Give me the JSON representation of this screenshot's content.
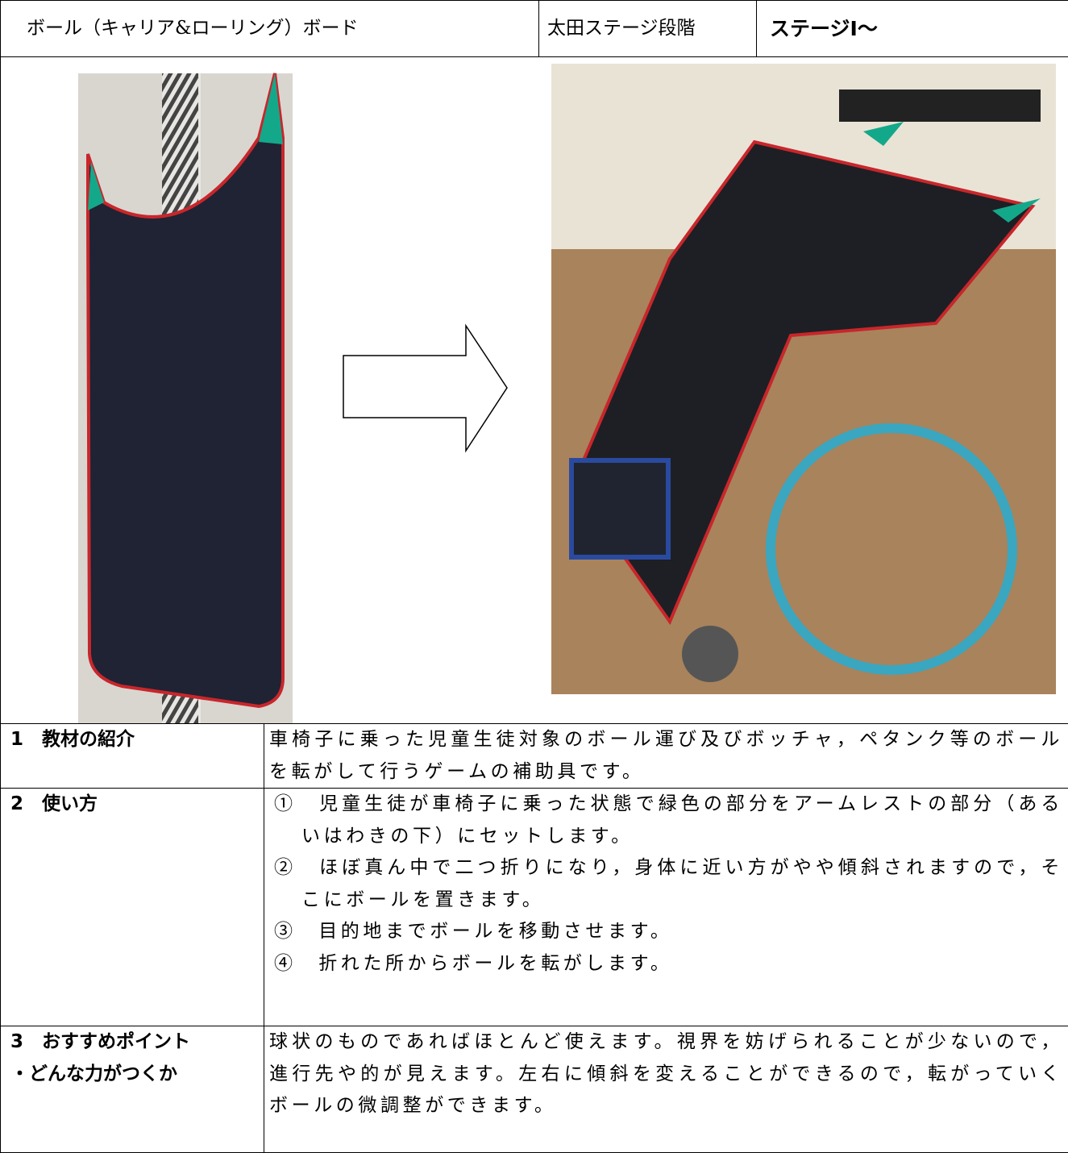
{
  "header": {
    "title": "ボール（キャリア&ローリング）ボード",
    "stage_label": "太田ステージ段階",
    "stage_value": "ステージⅠ～"
  },
  "sections": [
    {
      "heading": [
        "1　教材の紹介"
      ],
      "body": [
        "車椅子に乗った児童生徒対象のボール運び及びボッチャ，ペタンク等のボールを転がして行うゲームの補助具です。"
      ]
    },
    {
      "heading": [
        "2　使い方"
      ],
      "items": [
        "①　児童生徒が車椅子に乗った状態で緑色の部分をアームレストの部分（あるいはわきの下）にセットします。",
        "②　ほぼ真ん中で二つ折りになり，身体に近い方がやや傾斜されますので，そこにボールを置きます。",
        "③　目的地までボールを移動させます。",
        "④　折れた所からボールを転がします。"
      ]
    },
    {
      "heading": [
        "3　おすすめポイント",
        "・どんな力がつくか"
      ],
      "body": [
        "球状のものであればほとんど使えます。視界を妨げられることが少ないので，進行先や的が見えます。左右に傾斜を変えることができるので，転がっていくボールの微調整ができます。"
      ]
    }
  ]
}
